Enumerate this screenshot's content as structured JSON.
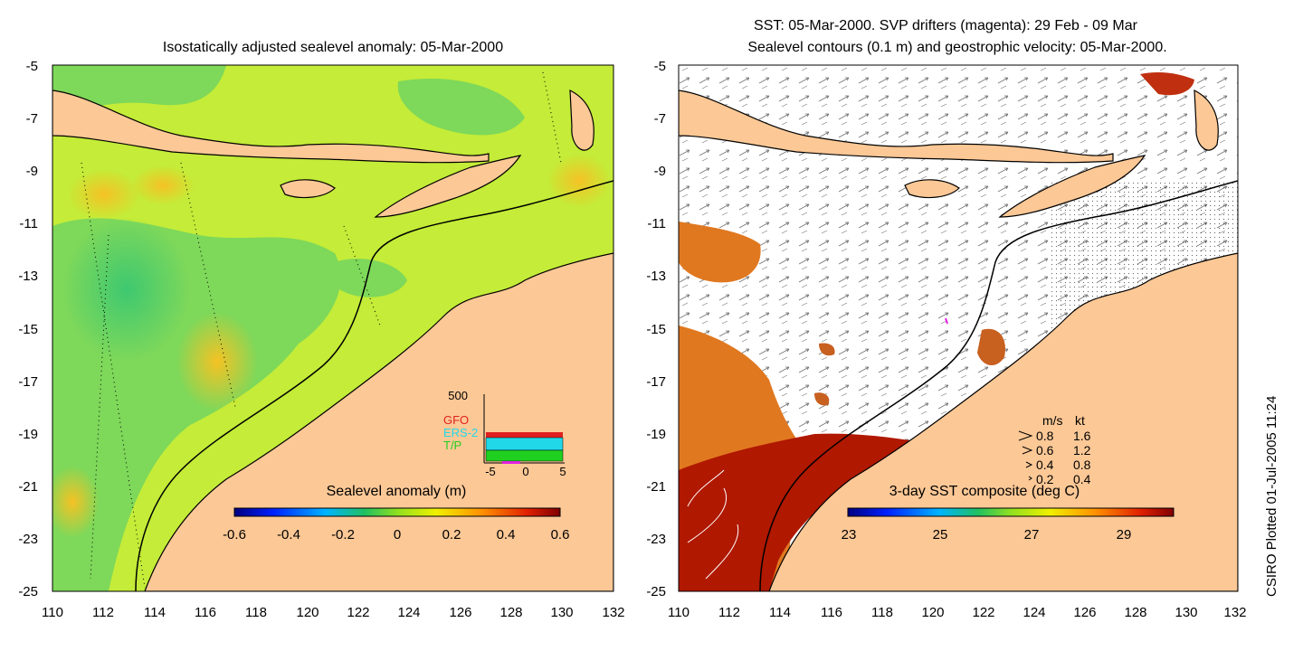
{
  "left_panel": {
    "title": "Isostatically adjusted sealevel anomaly: 05-Mar-2000",
    "colorbar": {
      "label": "Sealevel anomaly (m)",
      "range": [
        -0.6,
        0.6
      ],
      "ticks": [
        "-0.6",
        "-0.4",
        "-0.2",
        "0",
        "0.2",
        "0.4",
        "0.6"
      ]
    },
    "histogram": {
      "ymax_label": "500",
      "legend": [
        {
          "name": "GFO",
          "color": "#e02020"
        },
        {
          "name": "ERS-2",
          "color": "#20d8e8"
        },
        {
          "name": "T/P",
          "color": "#20d020"
        }
      ],
      "x_ticks": [
        "-5",
        "0",
        "5"
      ]
    }
  },
  "right_panel": {
    "title_line1": "SST: 05-Mar-2000. SVP drifters (magenta): 29 Feb - 09 Mar",
    "title_line2": "Sealevel contours (0.1 m) and geostrophic velocity: 05-Mar-2000.",
    "colorbar": {
      "label": "3-day SST composite (deg C)",
      "range": [
        23,
        29.5
      ],
      "ticks": [
        "23",
        "25",
        "27",
        "29"
      ]
    },
    "velocity_legend": {
      "header_ms": "m/s",
      "header_kt": "kt",
      "rows": [
        {
          "ms": "0.8",
          "kt": "1.6"
        },
        {
          "ms": "0.6",
          "kt": "1.2"
        },
        {
          "ms": "0.4",
          "kt": "0.8"
        },
        {
          "ms": "0.2",
          "kt": "0.4"
        }
      ]
    }
  },
  "axes": {
    "lat_ticks": [
      "-5",
      "-7",
      "-9",
      "-11",
      "-13",
      "-15",
      "-17",
      "-19",
      "-21",
      "-23",
      "-25"
    ],
    "lon_ticks": [
      "110",
      "112",
      "114",
      "116",
      "118",
      "120",
      "122",
      "124",
      "126",
      "128",
      "130",
      "132"
    ]
  },
  "credit": "CSIRO Plotted 01-Jul-2005 11:24",
  "colors": {
    "land": "#fcc896",
    "ocean_green": "#7ed85a",
    "ocean_yellowgreen": "#c4ec38",
    "ocean_yellow": "#f2e830",
    "sst_red": "#b01800",
    "sst_orange": "#e07820"
  }
}
